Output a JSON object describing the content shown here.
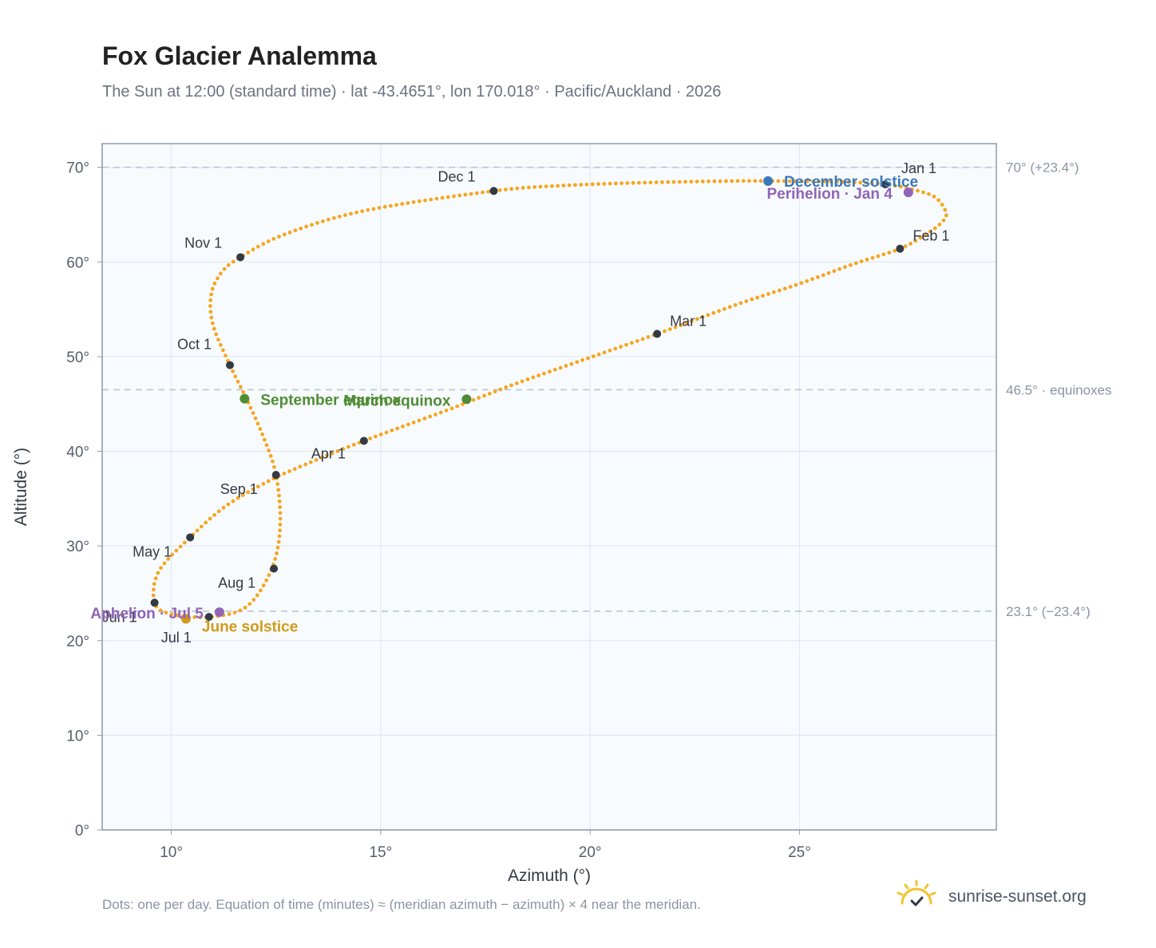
{
  "title": "Fox Glacier Analemma",
  "subtitle": "The Sun at 12:00 (standard time) · lat -43.4651°, lon 170.018° · Pacific/Auckland · 2026",
  "footnote": "Dots: one per day. Equation of time (minutes) ≈ (meridian azimuth − azimuth) × 4 near the meridian.",
  "brand": {
    "text": "sunrise-sunset.org",
    "icon": "sun-logo-icon"
  },
  "colors": {
    "curve": "#f5a623",
    "month_marker": "#333a44",
    "solstice_june": "#d19a1a",
    "solstice_december": "#3a77b9",
    "equinox": "#4f8c34",
    "apsis": "#9064b7",
    "reference_line": "#b9c5d2",
    "grid": "#e2e8f0",
    "plot_bg": "#f8fbfe",
    "axis": "#8e99a8"
  },
  "chart_data": {
    "type": "scatter",
    "xlabel": "Azimuth (°)",
    "ylabel": "Altitude (°)",
    "xlim": [
      8.35,
      29.7
    ],
    "ylim": [
      0,
      72.5
    ],
    "x_ticks": [
      {
        "value": 10,
        "label": "10°"
      },
      {
        "value": 15,
        "label": "15°"
      },
      {
        "value": 20,
        "label": "20°"
      },
      {
        "value": 25,
        "label": "25°"
      }
    ],
    "y_ticks": [
      {
        "value": 0,
        "label": "0°"
      },
      {
        "value": 10,
        "label": "10°"
      },
      {
        "value": 20,
        "label": "20°"
      },
      {
        "value": 30,
        "label": "30°"
      },
      {
        "value": 40,
        "label": "40°"
      },
      {
        "value": 50,
        "label": "50°"
      },
      {
        "value": 60,
        "label": "60°"
      },
      {
        "value": 70,
        "label": "70°"
      }
    ],
    "grid": true,
    "reference_lines": [
      {
        "y": 70,
        "label": "70° (+23.4°)"
      },
      {
        "y": 46.5,
        "label": "46.5° · equinoxes"
      },
      {
        "y": 23.1,
        "label": "23.1° (−23.4°)"
      }
    ],
    "month_markers": [
      {
        "label": "Jan 1",
        "x": 27.05,
        "y": 68.2
      },
      {
        "label": "Feb 1",
        "x": 27.4,
        "y": 61.4
      },
      {
        "label": "Mar 1",
        "x": 21.6,
        "y": 52.4
      },
      {
        "label": "Apr 1",
        "x": 14.6,
        "y": 41.1
      },
      {
        "label": "May 1",
        "x": 10.45,
        "y": 30.9
      },
      {
        "label": "Jun 1",
        "x": 9.6,
        "y": 24.0
      },
      {
        "label": "Jul 1",
        "x": 10.9,
        "y": 22.5
      },
      {
        "label": "Aug 1",
        "x": 12.45,
        "y": 27.6
      },
      {
        "label": "Sep 1",
        "x": 12.5,
        "y": 37.5
      },
      {
        "label": "Oct 1",
        "x": 11.4,
        "y": 49.1
      },
      {
        "label": "Nov 1",
        "x": 11.65,
        "y": 60.5
      },
      {
        "label": "Dec 1",
        "x": 17.7,
        "y": 67.5
      }
    ],
    "events": [
      {
        "label": "December solstice",
        "x": 24.25,
        "y": 68.55,
        "kind": "solstice_december"
      },
      {
        "label": "Perihelion · Jan 4",
        "x": 27.6,
        "y": 67.35,
        "kind": "apsis"
      },
      {
        "label": "March equinox",
        "x": 17.05,
        "y": 45.5,
        "kind": "equinox"
      },
      {
        "label": "September equinox",
        "x": 11.75,
        "y": 45.55,
        "kind": "equinox"
      },
      {
        "label": "June solstice",
        "x": 10.35,
        "y": 22.3,
        "kind": "solstice_june"
      },
      {
        "label": "Aphelion · Jul 5",
        "x": 11.15,
        "y": 23.0,
        "kind": "apsis"
      }
    ],
    "series": [
      {
        "x": [
          25.9,
          27.05,
          27.75,
          28.25,
          28.5,
          28.4,
          28.05,
          27.4,
          26.3,
          25,
          23.5,
          21.6,
          19.8,
          18.2,
          16.5,
          14.6,
          13.2,
          12.3,
          11.3,
          10.45,
          9.7,
          9.6,
          10.0,
          10.9,
          11.8,
          12.4,
          12.6,
          12.5,
          12.2,
          11.8,
          11.4,
          11.0,
          10.95,
          11.2,
          11.65,
          12.7,
          14.6,
          17.7,
          19.5,
          21.5,
          23.4,
          24.3,
          25.9
        ],
        "y": [
          68.5,
          68.2,
          67.6,
          66.8,
          65.2,
          64.2,
          63.0,
          61.4,
          59.8,
          57.7,
          55.5,
          52.4,
          49.6,
          47.1,
          44.2,
          41.1,
          38.6,
          36.8,
          34.2,
          30.9,
          27.3,
          24.0,
          22.8,
          22.5,
          23.6,
          27.6,
          32.2,
          37.5,
          41.5,
          45.5,
          49.1,
          53.3,
          56.5,
          58.9,
          60.5,
          62.9,
          65.4,
          67.5,
          68.1,
          68.4,
          68.55,
          68.55,
          68.5
        ]
      }
    ]
  }
}
